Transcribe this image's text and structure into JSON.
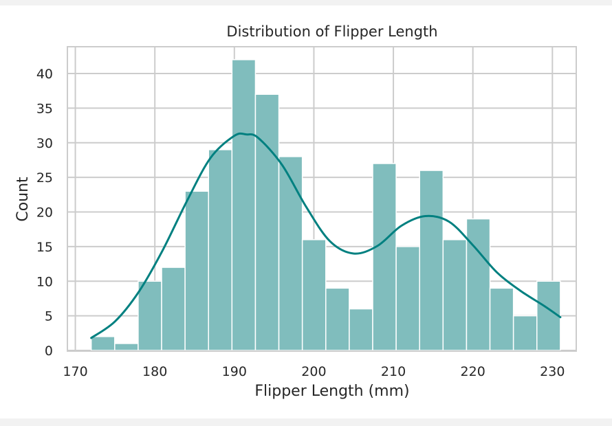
{
  "chart_data": {
    "type": "bar",
    "title": "Distribution of Flipper Length",
    "xlabel": "Flipper Length (mm)",
    "ylabel": "Count",
    "xlim": [
      169,
      233
    ],
    "ylim": [
      0,
      44
    ],
    "xticks": [
      170,
      180,
      190,
      200,
      210,
      220,
      230
    ],
    "yticks": [
      0,
      5,
      10,
      15,
      20,
      25,
      30,
      35,
      40
    ],
    "bin_edges": [
      172,
      174.95,
      177.9,
      180.85,
      183.8,
      186.75,
      189.7,
      192.65,
      195.6,
      198.55,
      201.5,
      204.45,
      207.4,
      210.35,
      213.3,
      216.25,
      219.2,
      222.15,
      225.1,
      228.05,
      231
    ],
    "counts": [
      2,
      1,
      10,
      12,
      23,
      29,
      42,
      37,
      28,
      16,
      9,
      6,
      27,
      15,
      26,
      16,
      19,
      9,
      5,
      10
    ],
    "kde": {
      "x": [
        172,
        175,
        178,
        181,
        184,
        187,
        190,
        191.5,
        193,
        196,
        199,
        202,
        205,
        208,
        211,
        214,
        217,
        220,
        223,
        226,
        229,
        231
      ],
      "y": [
        1.8,
        4.2,
        8.5,
        14.5,
        21.5,
        27.8,
        31.0,
        31.2,
        30.7,
        26.8,
        20.8,
        15.8,
        14.0,
        15.1,
        18.0,
        19.4,
        18.6,
        15.2,
        11.3,
        8.6,
        6.4,
        4.8
      ]
    },
    "grid": true,
    "colors": {
      "bar_fill": "#80bdbd",
      "bar_edge": "#ffffff",
      "kde_line": "#008080",
      "grid": "#cccccc",
      "spine": "#cccccc",
      "text": "#262626"
    }
  }
}
